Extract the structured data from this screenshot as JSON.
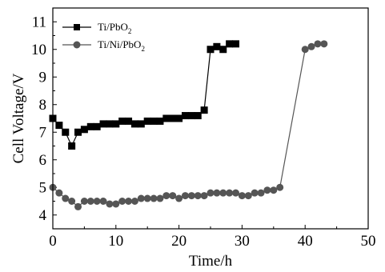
{
  "chart_data": {
    "type": "line",
    "xlabel": "Time/h",
    "ylabel": "Cell Voltage/V",
    "xlim": [
      0,
      50
    ],
    "ylim": [
      3.5,
      11.5
    ],
    "xticks": [
      0,
      10,
      20,
      30,
      40,
      50
    ],
    "yticks": [
      4,
      5,
      6,
      7,
      8,
      9,
      10,
      11
    ],
    "grid": false,
    "legend": "top-left",
    "series": [
      {
        "name": "Ti/PbO2",
        "legend_main": "Ti/PbO",
        "legend_sub": "2",
        "marker": "square",
        "color": "#000000",
        "x": [
          0,
          1,
          2,
          3,
          4,
          5,
          6,
          7,
          8,
          9,
          10,
          11,
          12,
          13,
          14,
          15,
          16,
          17,
          18,
          19,
          20,
          21,
          22,
          23,
          24,
          25,
          26,
          27,
          28,
          29
        ],
        "y": [
          7.5,
          7.25,
          7.0,
          6.5,
          7.0,
          7.1,
          7.2,
          7.2,
          7.3,
          7.3,
          7.3,
          7.4,
          7.4,
          7.3,
          7.3,
          7.4,
          7.4,
          7.4,
          7.5,
          7.5,
          7.5,
          7.6,
          7.6,
          7.6,
          7.8,
          10.0,
          10.1,
          10.0,
          10.2,
          10.2
        ]
      },
      {
        "name": "Ti/Ni/PbO2",
        "legend_main": "Ti/Ni/PbO",
        "legend_sub": "2",
        "marker": "circle",
        "color": "#555555",
        "x": [
          0,
          1,
          2,
          3,
          4,
          5,
          6,
          7,
          8,
          9,
          10,
          11,
          12,
          13,
          14,
          15,
          16,
          17,
          18,
          19,
          20,
          21,
          22,
          23,
          24,
          25,
          26,
          27,
          28,
          29,
          30,
          31,
          32,
          33,
          34,
          35,
          36,
          40,
          41,
          42,
          43
        ],
        "y": [
          5.0,
          4.8,
          4.6,
          4.5,
          4.3,
          4.5,
          4.5,
          4.5,
          4.5,
          4.4,
          4.4,
          4.5,
          4.5,
          4.5,
          4.6,
          4.6,
          4.6,
          4.6,
          4.7,
          4.7,
          4.6,
          4.7,
          4.7,
          4.7,
          4.7,
          4.8,
          4.8,
          4.8,
          4.8,
          4.8,
          4.7,
          4.7,
          4.8,
          4.8,
          4.9,
          4.9,
          5.0,
          10.0,
          10.1,
          10.2,
          10.2
        ]
      }
    ]
  }
}
